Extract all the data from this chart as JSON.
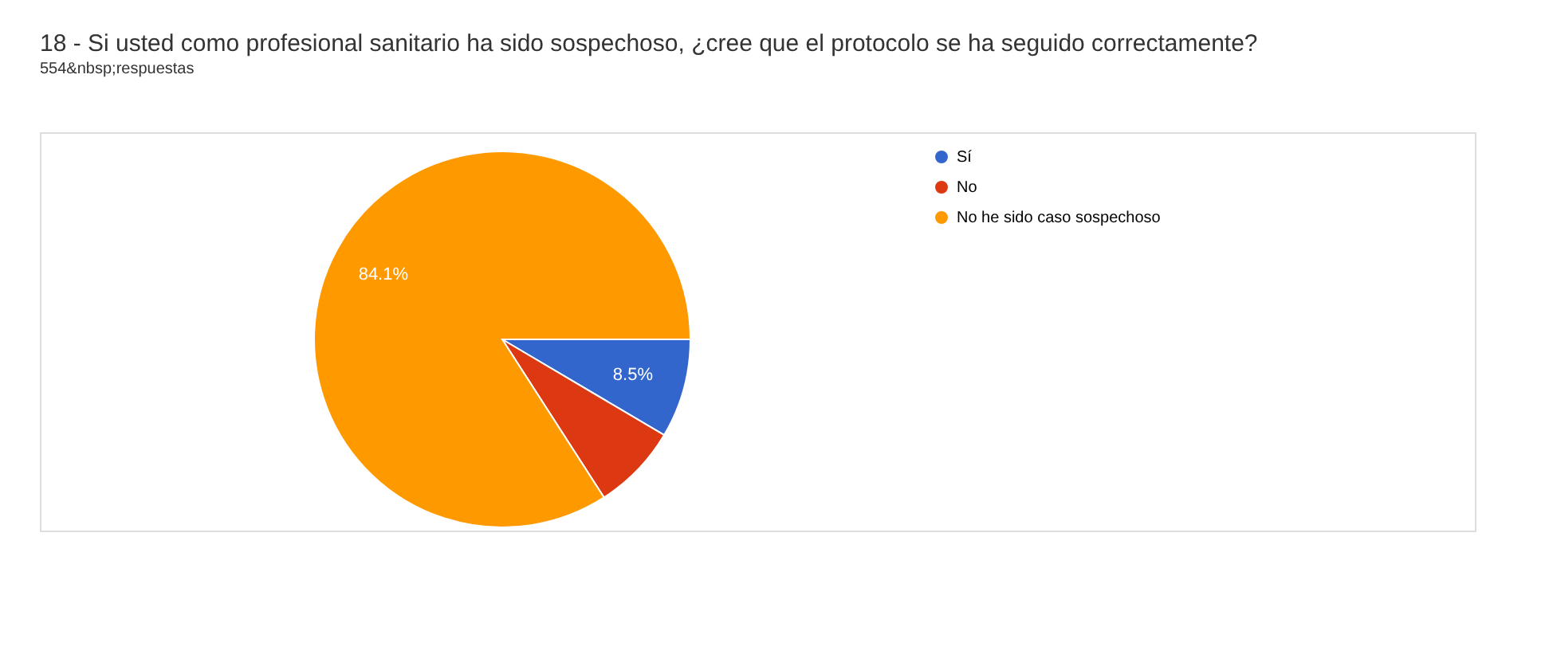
{
  "chart_data": {
    "type": "pie",
    "title": "18 - Si usted como profesional sanitario ha sido sospechoso, ¿cree que el protocolo se ha seguido correctamente?",
    "subtitle": "554&nbsp;respuestas",
    "categories": [
      "Sí",
      "No",
      "No he sido caso sospechoso"
    ],
    "values": [
      8.5,
      7.4,
      84.1
    ],
    "colors": [
      "#3366cc",
      "#dc3912",
      "#ff9900"
    ],
    "value_labels": [
      "8.5%",
      null,
      "84.1%"
    ],
    "legend": "right"
  }
}
